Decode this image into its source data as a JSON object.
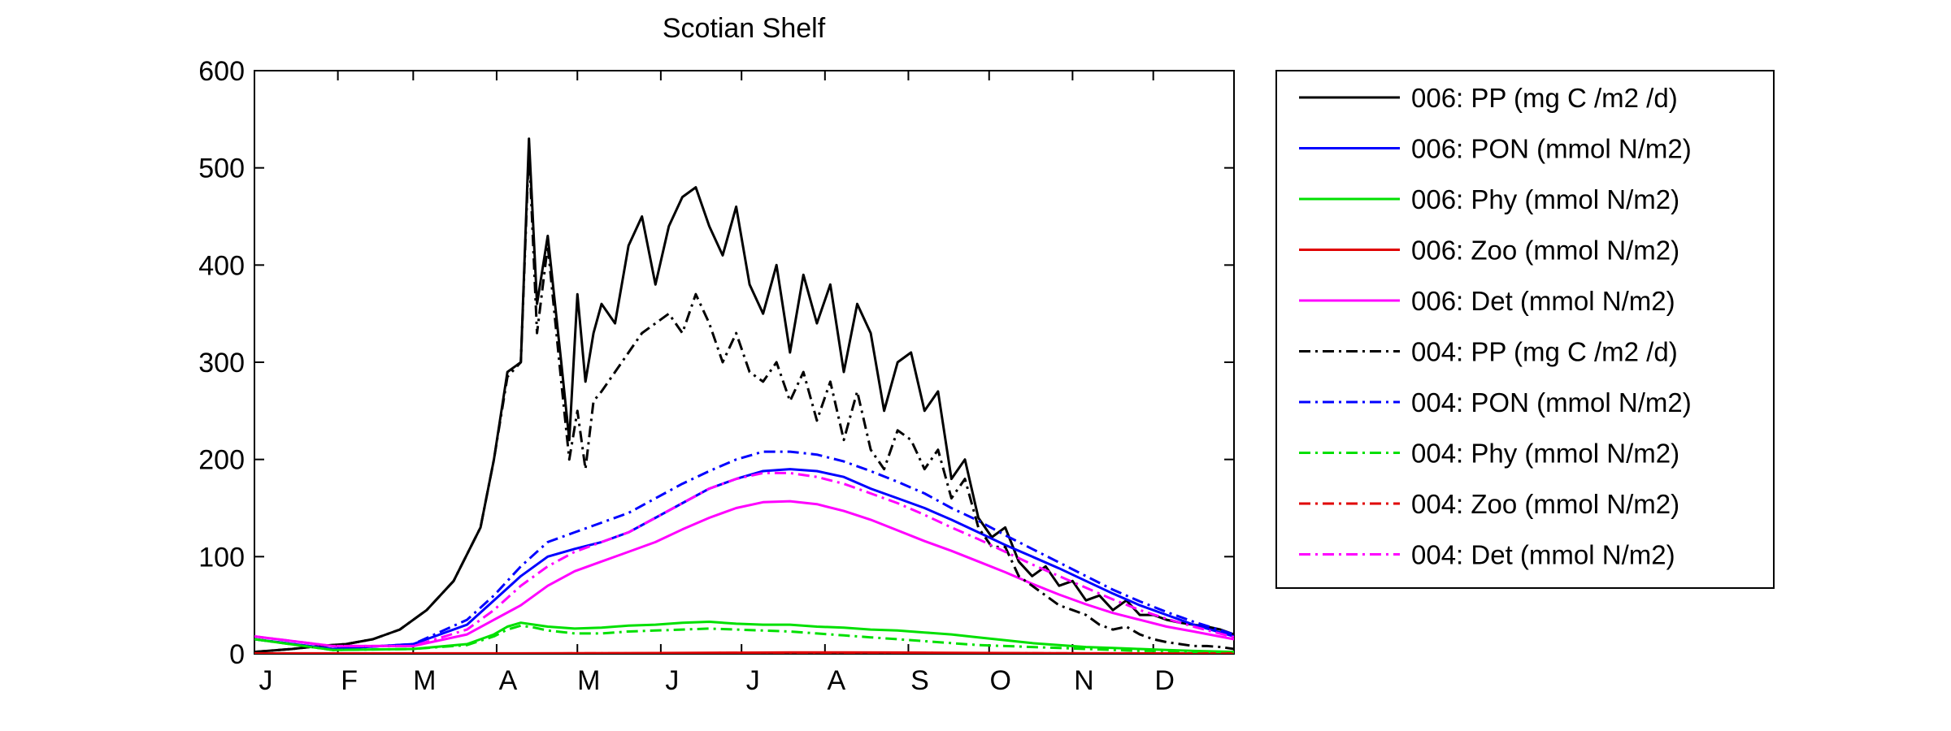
{
  "chart_data": {
    "type": "line",
    "title": "Scotian Shelf",
    "xlabel": "",
    "ylabel": "",
    "xlim": [
      1,
      365
    ],
    "ylim": [
      0,
      600
    ],
    "grid": false,
    "legend_position": "outside-right",
    "x_ticks": [
      {
        "day": 1,
        "label": "J"
      },
      {
        "day": 32,
        "label": "F"
      },
      {
        "day": 60,
        "label": "M"
      },
      {
        "day": 91,
        "label": "A"
      },
      {
        "day": 121,
        "label": "M"
      },
      {
        "day": 152,
        "label": "J"
      },
      {
        "day": 182,
        "label": "J"
      },
      {
        "day": 213,
        "label": "A"
      },
      {
        "day": 244,
        "label": "S"
      },
      {
        "day": 274,
        "label": "O"
      },
      {
        "day": 305,
        "label": "N"
      },
      {
        "day": 335,
        "label": "D"
      }
    ],
    "y_ticks": [
      0,
      100,
      200,
      300,
      400,
      500,
      600
    ],
    "series": [
      {
        "name": "006: PP (mg C /m2 /d)",
        "color": "#000000",
        "dash": "solid",
        "x": [
          1,
          15,
          25,
          35,
          45,
          55,
          65,
          75,
          85,
          90,
          95,
          100,
          103,
          106,
          110,
          115,
          118,
          121,
          124,
          127,
          130,
          135,
          140,
          145,
          150,
          155,
          160,
          165,
          170,
          175,
          180,
          185,
          190,
          195,
          200,
          205,
          210,
          215,
          220,
          225,
          230,
          235,
          240,
          245,
          250,
          255,
          260,
          265,
          270,
          275,
          280,
          285,
          290,
          295,
          300,
          305,
          310,
          315,
          320,
          325,
          330,
          335,
          340,
          345,
          350,
          355,
          360,
          365
        ],
        "y": [
          2,
          5,
          8,
          10,
          15,
          25,
          45,
          75,
          130,
          200,
          290,
          300,
          530,
          360,
          430,
          300,
          220,
          370,
          280,
          330,
          360,
          340,
          420,
          450,
          380,
          440,
          470,
          480,
          440,
          410,
          460,
          380,
          350,
          400,
          310,
          390,
          340,
          380,
          290,
          360,
          330,
          250,
          300,
          310,
          250,
          270,
          180,
          200,
          140,
          120,
          130,
          95,
          80,
          90,
          70,
          75,
          55,
          60,
          45,
          55,
          40,
          40,
          35,
          32,
          30,
          28,
          25,
          20
        ]
      },
      {
        "name": "006: PON (mmol N/m2)",
        "color": "#0000ff",
        "dash": "solid",
        "x": [
          1,
          30,
          60,
          80,
          90,
          100,
          110,
          120,
          130,
          140,
          150,
          160,
          170,
          180,
          190,
          200,
          210,
          220,
          230,
          240,
          250,
          260,
          270,
          280,
          290,
          300,
          310,
          320,
          330,
          340,
          350,
          365
        ],
        "y": [
          15,
          5,
          10,
          30,
          55,
          80,
          100,
          108,
          115,
          125,
          140,
          155,
          170,
          180,
          188,
          190,
          188,
          182,
          170,
          160,
          150,
          138,
          125,
          112,
          100,
          88,
          75,
          62,
          50,
          40,
          30,
          18
        ]
      },
      {
        "name": "006: Phy (mmol N/m2)",
        "color": "#00e000",
        "dash": "solid",
        "x": [
          1,
          30,
          60,
          80,
          90,
          95,
          100,
          105,
          110,
          120,
          130,
          140,
          150,
          160,
          170,
          180,
          190,
          200,
          210,
          220,
          230,
          240,
          250,
          260,
          270,
          280,
          290,
          300,
          310,
          320,
          330,
          340,
          350,
          365
        ],
        "y": [
          15,
          4,
          5,
          10,
          20,
          28,
          32,
          30,
          28,
          26,
          27,
          29,
          30,
          32,
          33,
          31,
          30,
          30,
          28,
          27,
          25,
          24,
          22,
          20,
          17,
          14,
          11,
          9,
          7,
          6,
          5,
          4,
          3,
          2
        ]
      },
      {
        "name": "006: Zoo (mmol N/m2)",
        "color": "#e00000",
        "dash": "solid",
        "x": [
          1,
          100,
          150,
          180,
          200,
          220,
          240,
          260,
          300,
          365
        ],
        "y": [
          0.5,
          0.5,
          0.8,
          1.2,
          1.5,
          1.5,
          1.3,
          1,
          0.6,
          0.3
        ]
      },
      {
        "name": "006: Det (mmol N/m2)",
        "color": "#ff00ff",
        "dash": "solid",
        "x": [
          1,
          30,
          60,
          80,
          90,
          100,
          110,
          120,
          130,
          140,
          150,
          160,
          170,
          180,
          190,
          200,
          210,
          220,
          230,
          240,
          250,
          260,
          270,
          280,
          290,
          300,
          310,
          320,
          330,
          340,
          350,
          365
        ],
        "y": [
          18,
          8,
          8,
          20,
          35,
          50,
          70,
          85,
          95,
          105,
          115,
          128,
          140,
          150,
          156,
          157,
          154,
          147,
          138,
          127,
          116,
          106,
          95,
          84,
          72,
          61,
          51,
          42,
          35,
          28,
          23,
          15
        ]
      },
      {
        "name": "004: PP (mg C /m2 /d)",
        "color": "#000000",
        "dash": "dashdot",
        "x": [
          1,
          15,
          25,
          35,
          45,
          55,
          65,
          75,
          85,
          90,
          95,
          100,
          103,
          106,
          110,
          115,
          118,
          121,
          124,
          127,
          130,
          135,
          140,
          145,
          150,
          155,
          160,
          165,
          170,
          175,
          180,
          185,
          190,
          195,
          200,
          205,
          210,
          215,
          220,
          225,
          230,
          235,
          240,
          245,
          250,
          255,
          260,
          265,
          270,
          275,
          280,
          285,
          290,
          295,
          300,
          305,
          310,
          315,
          320,
          325,
          330,
          335,
          340,
          345,
          350,
          355,
          360,
          365
        ],
        "y": [
          2,
          5,
          8,
          10,
          15,
          25,
          45,
          75,
          130,
          200,
          285,
          300,
          520,
          330,
          420,
          280,
          200,
          250,
          190,
          260,
          270,
          290,
          310,
          330,
          340,
          350,
          330,
          370,
          340,
          300,
          330,
          290,
          280,
          300,
          260,
          290,
          240,
          280,
          220,
          270,
          210,
          190,
          230,
          220,
          190,
          210,
          160,
          180,
          130,
          110,
          110,
          80,
          70,
          60,
          50,
          45,
          40,
          30,
          25,
          28,
          20,
          15,
          12,
          10,
          8,
          8,
          7,
          5
        ]
      },
      {
        "name": "004: PON (mmol N/m2)",
        "color": "#0000ff",
        "dash": "dashdot",
        "x": [
          1,
          30,
          60,
          80,
          90,
          100,
          110,
          120,
          130,
          140,
          150,
          160,
          170,
          180,
          190,
          200,
          210,
          220,
          230,
          240,
          250,
          260,
          270,
          280,
          290,
          300,
          310,
          320,
          330,
          340,
          350,
          365
        ],
        "y": [
          15,
          5,
          10,
          35,
          60,
          90,
          115,
          125,
          135,
          145,
          160,
          175,
          188,
          200,
          208,
          208,
          205,
          198,
          188,
          177,
          165,
          150,
          137,
          122,
          108,
          94,
          80,
          66,
          54,
          43,
          33,
          20
        ]
      },
      {
        "name": "004: Phy (mmol N/m2)",
        "color": "#00e000",
        "dash": "dashdot",
        "x": [
          1,
          30,
          60,
          80,
          90,
          95,
          100,
          105,
          110,
          120,
          130,
          140,
          150,
          160,
          170,
          180,
          190,
          200,
          210,
          220,
          230,
          240,
          250,
          260,
          270,
          280,
          290,
          300,
          310,
          320,
          330,
          340,
          350,
          365
        ],
        "y": [
          15,
          4,
          5,
          9,
          18,
          25,
          29,
          27,
          24,
          21,
          21,
          23,
          24,
          25,
          26,
          25,
          24,
          23,
          21,
          19,
          17,
          15,
          13,
          11,
          9,
          8,
          7,
          6,
          5,
          4,
          3,
          3,
          2,
          2
        ]
      },
      {
        "name": "004: Zoo (mmol N/m2)",
        "color": "#e00000",
        "dash": "dashdot",
        "x": [
          1,
          100,
          150,
          180,
          200,
          220,
          240,
          260,
          300,
          365
        ],
        "y": [
          0.4,
          0.4,
          0.6,
          1,
          1.2,
          1.2,
          1,
          0.8,
          0.5,
          0.2
        ]
      },
      {
        "name": "004: Det (mmol N/m2)",
        "color": "#ff00ff",
        "dash": "dashdot",
        "x": [
          1,
          30,
          60,
          80,
          90,
          100,
          110,
          120,
          130,
          140,
          150,
          160,
          170,
          180,
          190,
          200,
          210,
          220,
          230,
          240,
          250,
          260,
          270,
          280,
          290,
          300,
          310,
          320,
          330,
          340,
          350,
          365
        ],
        "y": [
          18,
          8,
          8,
          25,
          45,
          70,
          90,
          105,
          115,
          125,
          140,
          155,
          170,
          180,
          186,
          186,
          182,
          175,
          165,
          155,
          143,
          130,
          118,
          105,
          92,
          80,
          68,
          56,
          45,
          36,
          28,
          17
        ]
      }
    ]
  }
}
